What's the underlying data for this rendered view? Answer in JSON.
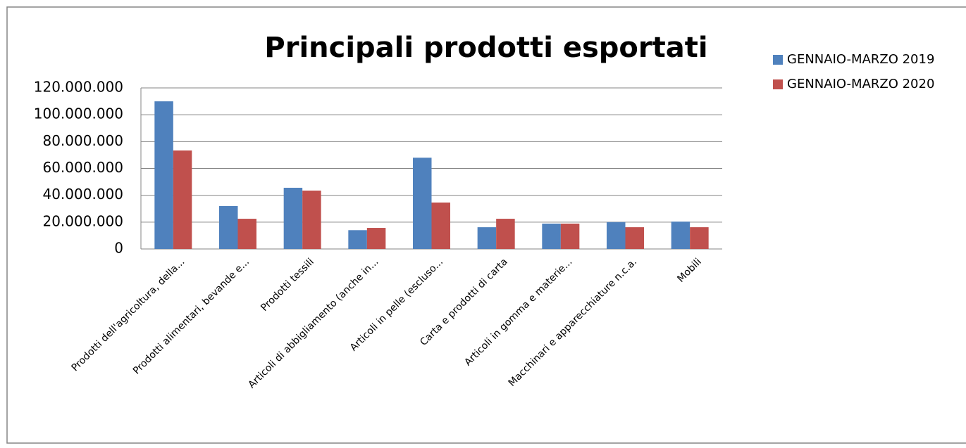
{
  "chart_data": {
    "type": "bar",
    "title": "Principali prodotti esportati",
    "categories": [
      "Prodotti dell'agricoltura, della...",
      "Prodotti alimentari, bevande e...",
      "Prodotti tessili",
      "Articoli di abbigliamento (anche in...",
      "Articoli in pelle (escluso...",
      "Carta e prodotti di carta",
      "Articoli in gomma e materie...",
      "Macchinari e apparecchiature n.c.a.",
      "Mobili"
    ],
    "series": [
      {
        "name": "GENNAIO-MARZO 2019",
        "color": "#4f81bd",
        "values": [
          110000000,
          32000000,
          45600000,
          14000000,
          68000000,
          16200000,
          18900000,
          20000000,
          20400000
        ]
      },
      {
        "name": "GENNAIO-MARZO 2020",
        "color": "#c0504d",
        "values": [
          73400000,
          22500000,
          43500000,
          15700000,
          34600000,
          22500000,
          18900000,
          16200000,
          16200000
        ]
      }
    ],
    "ylim": [
      0,
      120000000
    ],
    "yticks": [
      0,
      {
        "value": 20000000,
        "label": "20.000.000"
      },
      {
        "value": 40000000,
        "label": "40.000.000"
      },
      {
        "value": 60000000,
        "label": "60.000.000"
      },
      {
        "value": 80000000,
        "label": "80.000.000"
      },
      {
        "value": 100000000,
        "label": "100.000.000"
      },
      {
        "value": 120000000,
        "label": "120.000.000"
      }
    ],
    "grid": true,
    "legend": "right"
  }
}
